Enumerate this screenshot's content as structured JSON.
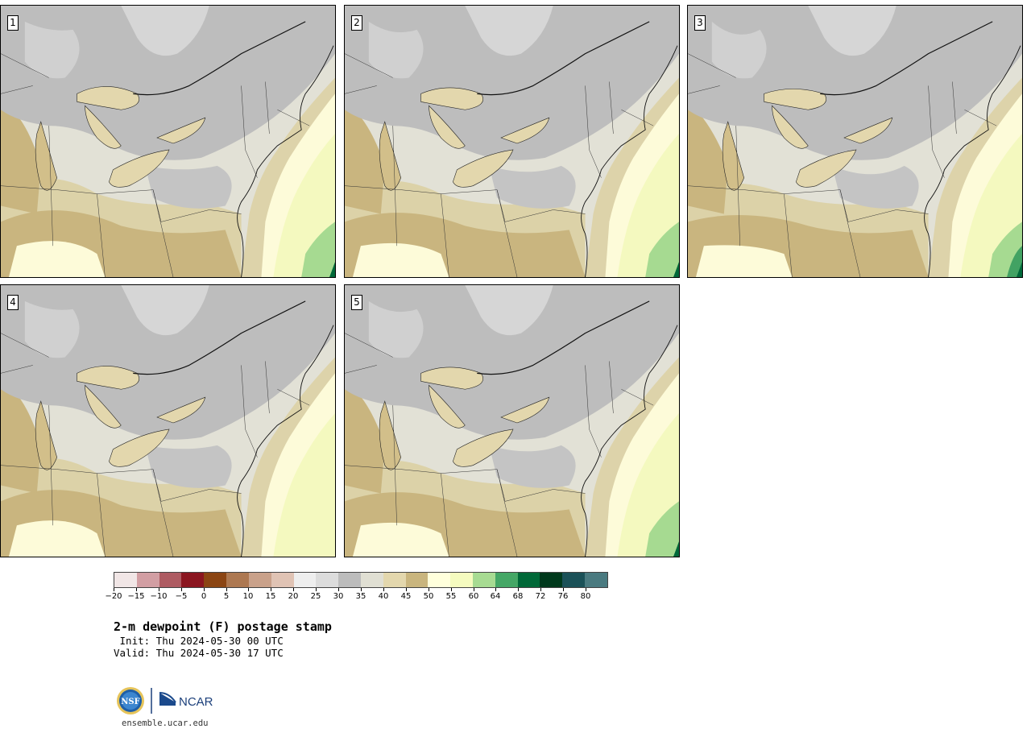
{
  "panels": [
    {
      "label": "1",
      "variant": 0
    },
    {
      "label": "2",
      "variant": 1
    },
    {
      "label": "3",
      "variant": 2
    },
    {
      "label": "4",
      "variant": 3
    },
    {
      "label": "5",
      "variant": 4
    }
  ],
  "colorbar": {
    "colors": [
      "#f1e6e6",
      "#d29ea3",
      "#ae5b62",
      "#8b1620",
      "#8b4513",
      "#ad7851",
      "#c9a18a",
      "#e0c3b4",
      "#eeeeee",
      "#dcdcdc",
      "#bcbcbc",
      "#e0dfd3",
      "#e3d7ad",
      "#c9b57e",
      "#ffffdc",
      "#f5fbbf",
      "#a7db92",
      "#45a766",
      "#006838",
      "#00391c",
      "#1b5158",
      "#4a7a80"
    ],
    "tick_labels": [
      "−20",
      "−15",
      "−10",
      "−5",
      "0",
      "5",
      "10",
      "15",
      "20",
      "25",
      "30",
      "35",
      "40",
      "45",
      "50",
      "55",
      "60",
      "64",
      "68",
      "72",
      "76",
      "80"
    ]
  },
  "title": "2-m dewpoint (F) postage stamp",
  "init_line": " Init: Thu 2024-05-30 00 UTC",
  "valid_line": "Valid: Thu 2024-05-30 17 UTC",
  "logo": {
    "nsf_text": "NSF",
    "ncar_text": "NCAR"
  },
  "website": "ensemble.ucar.edu"
}
